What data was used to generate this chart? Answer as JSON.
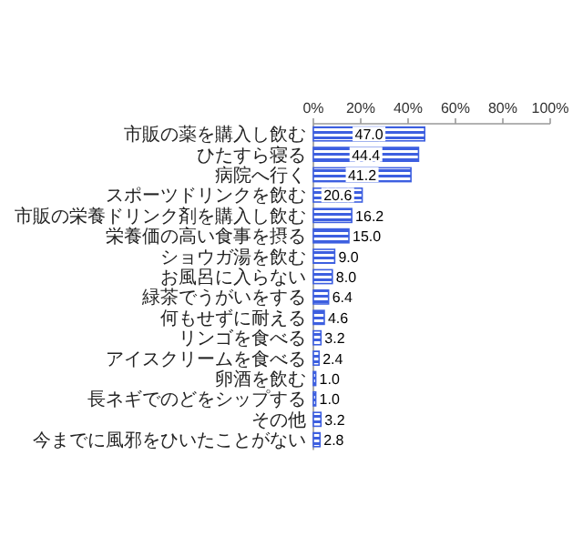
{
  "chart_data": {
    "type": "bar",
    "orientation": "horizontal",
    "categories": [
      "市販の薬を購入し飲む",
      "ひたすら寝る",
      "病院へ行く",
      "スポーツドリンクを飲む",
      "市販の栄養ドリンク剤を購入し飲む",
      "栄養価の高い食事を摂る",
      "ショウガ湯を飲む",
      "お風呂に入らない",
      "緑茶でうがいをする",
      "何もせずに耐える",
      "リンゴを食べる",
      "アイスクリームを食べる",
      "卵酒を飲む",
      "長ネギでのどをシップする",
      "その他",
      "今までに風邪をひいたことがない"
    ],
    "values": [
      47.0,
      44.4,
      41.2,
      20.6,
      16.2,
      15.0,
      9.0,
      8.0,
      6.4,
      4.6,
      3.2,
      2.4,
      1.0,
      1.0,
      3.2,
      2.8
    ],
    "color": "#3d5fe0",
    "xlim": [
      0,
      100
    ],
    "xticks": [
      {
        "value": 0,
        "label": "0%"
      },
      {
        "value": 20,
        "label": "20%"
      },
      {
        "value": 40,
        "label": "40%"
      },
      {
        "value": 60,
        "label": "60%"
      },
      {
        "value": 80,
        "label": "80%"
      },
      {
        "value": 100,
        "label": "100%"
      }
    ],
    "value_labels": [
      "47.0",
      "44.4",
      "41.2",
      "20.6",
      "16.2",
      "15.0",
      "9.0",
      "8.0",
      "6.4",
      "4.6",
      "3.2",
      "2.4",
      "1.0",
      "1.0",
      "3.2",
      "2.8"
    ],
    "grid": false
  }
}
